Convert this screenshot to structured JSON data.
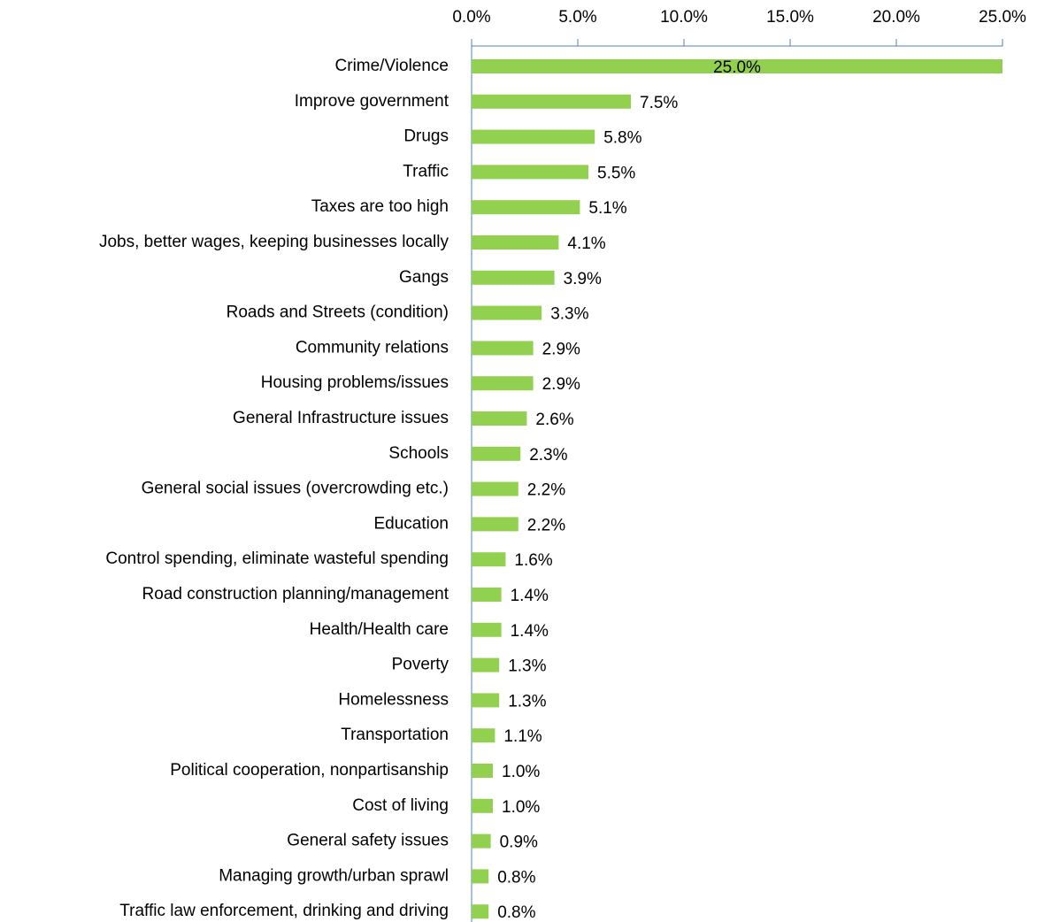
{
  "chart_data": {
    "type": "bar",
    "orientation": "horizontal",
    "color": "#92d050",
    "categories": [
      "Crime/Violence",
      "Improve government",
      "Drugs",
      "Traffic",
      "Taxes are too high",
      "Jobs, better wages, keeping businesses locally",
      "Gangs",
      "Roads and Streets (condition)",
      "Community relations",
      "Housing problems/issues",
      "General Infrastructure issues",
      "Schools",
      "General social issues (overcrowding etc.)",
      "Education",
      "Control spending, eliminate wasteful spending",
      "Road construction planning/management",
      "Health/Health care",
      "Poverty",
      "Homelessness",
      "Transportation",
      "Political cooperation, nonpartisanship",
      "Cost of living",
      "General safety issues",
      "Managing growth/urban sprawl",
      "Traffic law enforcement, drinking and driving"
    ],
    "values": [
      25.0,
      7.5,
      5.8,
      5.5,
      5.1,
      4.1,
      3.9,
      3.3,
      2.9,
      2.9,
      2.6,
      2.3,
      2.2,
      2.2,
      1.6,
      1.4,
      1.4,
      1.3,
      1.3,
      1.1,
      1.0,
      1.0,
      0.9,
      0.8,
      0.8
    ],
    "value_labels": [
      "25.0%",
      "7.5%",
      "5.8%",
      "5.5%",
      "5.1%",
      "4.1%",
      "3.9%",
      "3.3%",
      "2.9%",
      "2.9%",
      "2.6%",
      "2.3%",
      "2.2%",
      "2.2%",
      "1.6%",
      "1.4%",
      "1.4%",
      "1.3%",
      "1.3%",
      "1.1%",
      "1.0%",
      "1.0%",
      "0.9%",
      "0.8%",
      "0.8%"
    ],
    "xlim": [
      0,
      25
    ],
    "xticks": [
      {
        "value": 0,
        "label": "0.0%"
      },
      {
        "value": 5,
        "label": "5.0%"
      },
      {
        "value": 10,
        "label": "10.0%"
      },
      {
        "value": 15,
        "label": "15.0%"
      },
      {
        "value": 20,
        "label": "20.0%"
      },
      {
        "value": 25,
        "label": "25.0%"
      }
    ]
  }
}
